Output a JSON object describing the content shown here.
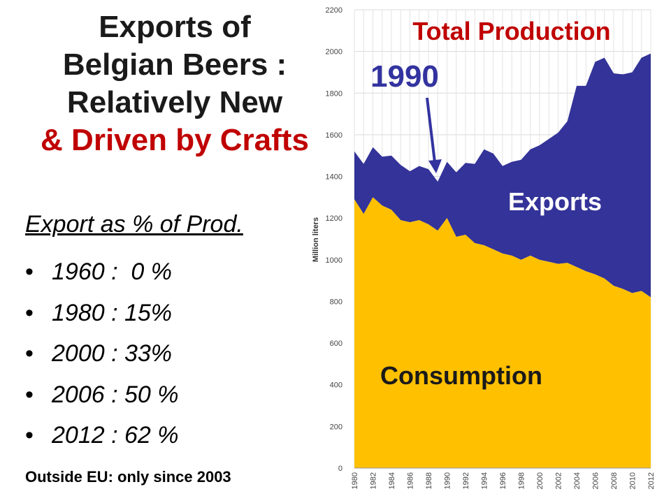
{
  "slide": {
    "title_line1": "Exports of",
    "title_line2": "Belgian Beers :",
    "title_line3": "Relatively New",
    "title_line4": "& Driven by Crafts",
    "subheading": "Export as % of Prod.",
    "bullets": [
      "1960 :  0 %",
      "1980 : 15%",
      "2000 : 33%",
      "2006 : 50 %",
      "2012 : 62 %"
    ],
    "footnote": "Outside EU: only since 2003",
    "colors": {
      "title": "#1a1a1a",
      "accent": "#c00000",
      "exports": "#333399",
      "consumption": "#ffc000",
      "annotation_blue": "#3333a0"
    }
  },
  "chart_data": {
    "type": "area",
    "stacked": true,
    "x": [
      1980,
      1981,
      1982,
      1983,
      1984,
      1985,
      1986,
      1987,
      1988,
      1989,
      1990,
      1991,
      1992,
      1993,
      1994,
      1995,
      1996,
      1997,
      1998,
      1999,
      2000,
      2001,
      2002,
      2003,
      2004,
      2005,
      2006,
      2007,
      2008,
      2009,
      2010,
      2011,
      2012
    ],
    "series": [
      {
        "name": "Consumption",
        "values": [
          1290,
          1220,
          1300,
          1260,
          1240,
          1190,
          1180,
          1190,
          1170,
          1140,
          1200,
          1110,
          1120,
          1080,
          1070,
          1050,
          1030,
          1020,
          1000,
          1020,
          1000,
          990,
          980,
          985,
          965,
          945,
          930,
          910,
          875,
          860,
          840,
          850,
          820
        ]
      },
      {
        "name": "Exports",
        "values": [
          230,
          240,
          240,
          235,
          260,
          265,
          245,
          260,
          265,
          235,
          270,
          310,
          345,
          380,
          460,
          460,
          420,
          450,
          480,
          510,
          550,
          590,
          630,
          680,
          870,
          890,
          1020,
          1060,
          1020,
          1030,
          1060,
          1120,
          1170
        ]
      }
    ],
    "total_label": "Total Production",
    "annotations": [
      "1990",
      "Exports",
      "Consumption"
    ],
    "ylabel": "Million liters",
    "ylim": [
      0,
      2200
    ],
    "yticks": [
      0,
      200,
      400,
      600,
      800,
      1000,
      1200,
      1400,
      1600,
      1800,
      2000,
      2200
    ],
    "xticks": [
      1980,
      1982,
      1984,
      1986,
      1988,
      1990,
      1992,
      1994,
      1996,
      1998,
      2000,
      2002,
      2004,
      2006,
      2008,
      2010,
      2012
    ],
    "grid": true
  }
}
